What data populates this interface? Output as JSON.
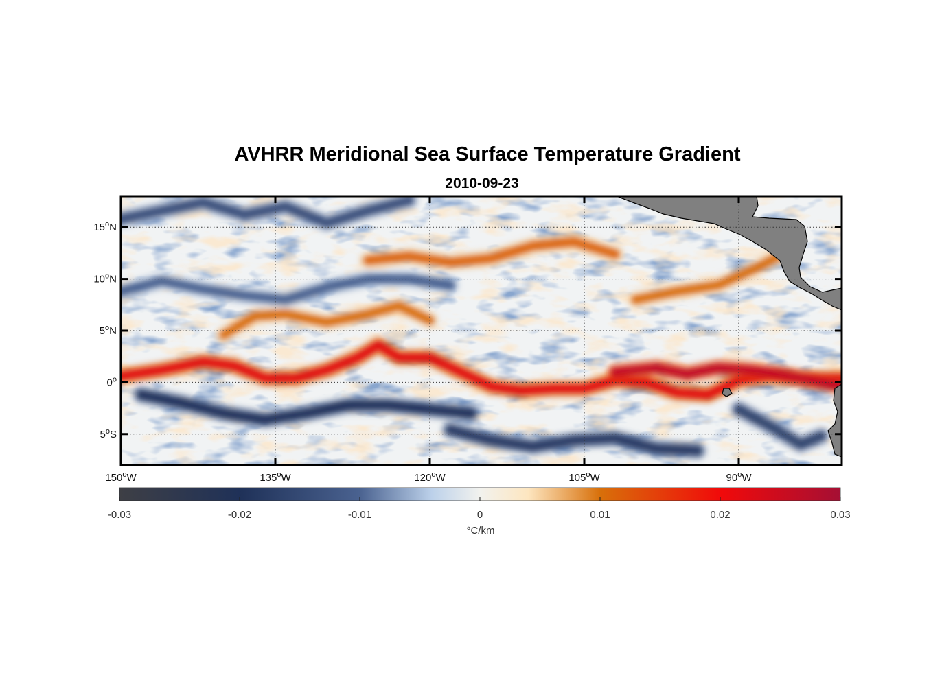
{
  "title": "AVHRR Meridional Sea Surface Temperature Gradient",
  "subtitle": "2010-09-23",
  "map": {
    "lon_range": [
      -150,
      -80
    ],
    "lat_range": [
      -8,
      18
    ],
    "grid": true,
    "lon_ticks": [
      {
        "value": -150,
        "label": "150",
        "suffix": "W"
      },
      {
        "value": -135,
        "label": "135",
        "suffix": "W"
      },
      {
        "value": -120,
        "label": "120",
        "suffix": "W"
      },
      {
        "value": -105,
        "label": "105",
        "suffix": "W"
      },
      {
        "value": -90,
        "label": "90",
        "suffix": "W"
      }
    ],
    "lat_ticks": [
      {
        "value": 15,
        "label": "15",
        "suffix": "N"
      },
      {
        "value": 10,
        "label": "10",
        "suffix": "N"
      },
      {
        "value": 5,
        "label": "5",
        "suffix": "N"
      },
      {
        "value": 0,
        "label": "0",
        "suffix": ""
      },
      {
        "value": -5,
        "label": "5",
        "suffix": "S"
      }
    ],
    "degree_symbol": "o",
    "land_color": "#808080",
    "features": [
      {
        "name": "equatorial-warm-front",
        "sign": 1,
        "strength": 0.022,
        "path": [
          [
            -150,
            0.6
          ],
          [
            -146,
            1.2
          ],
          [
            -142,
            2.0
          ],
          [
            -139,
            1.6
          ],
          [
            -136,
            0.4
          ],
          [
            -133,
            0.4
          ],
          [
            -130,
            1.2
          ],
          [
            -127,
            2.4
          ],
          [
            -125,
            3.6
          ],
          [
            -123,
            2.4
          ],
          [
            -120,
            2.4
          ],
          [
            -117,
            1.0
          ],
          [
            -114,
            -0.4
          ],
          [
            -111,
            -0.8
          ],
          [
            -108,
            -0.6
          ],
          [
            -105,
            -0.6
          ],
          [
            -102,
            0.2
          ],
          [
            -99,
            0.0
          ],
          [
            -96,
            -1.0
          ],
          [
            -93,
            -1.2
          ],
          [
            -90,
            0.2
          ],
          [
            -87,
            0.6
          ],
          [
            -84,
            0.4
          ],
          [
            -80,
            0.4
          ]
        ]
      },
      {
        "name": "eastern-warm-band",
        "sign": 1,
        "strength": 0.026,
        "path": [
          [
            -102,
            1.0
          ],
          [
            -98,
            1.4
          ],
          [
            -95,
            0.8
          ],
          [
            -92,
            1.4
          ],
          [
            -89,
            1.2
          ],
          [
            -86,
            0.8
          ],
          [
            -83,
            0.2
          ],
          [
            -80,
            -0.4
          ]
        ]
      },
      {
        "name": "northern-warm-band",
        "sign": 1,
        "strength": 0.011,
        "path": [
          [
            -126,
            11.8
          ],
          [
            -122,
            12.2
          ],
          [
            -118,
            11.6
          ],
          [
            -114,
            12.0
          ],
          [
            -110,
            13.2
          ],
          [
            -106,
            13.6
          ],
          [
            -102,
            12.4
          ]
        ]
      },
      {
        "name": "itcz-warm-band",
        "sign": 1,
        "strength": 0.01,
        "path": [
          [
            -140,
            4.6
          ],
          [
            -137,
            6.4
          ],
          [
            -134,
            6.6
          ],
          [
            -130,
            5.8
          ],
          [
            -126,
            6.6
          ],
          [
            -123,
            7.4
          ],
          [
            -120,
            6.0
          ]
        ]
      },
      {
        "name": "coastal-warm-band",
        "sign": 1,
        "strength": 0.01,
        "path": [
          [
            -100,
            8.0
          ],
          [
            -96,
            8.8
          ],
          [
            -92,
            9.4
          ],
          [
            -88,
            11.2
          ],
          [
            -85,
            12.8
          ]
        ]
      },
      {
        "name": "southern-cold-band",
        "sign": -1,
        "strength": 0.02,
        "path": [
          [
            -148,
            -1.2
          ],
          [
            -144,
            -2.0
          ],
          [
            -140,
            -3.0
          ],
          [
            -136,
            -3.6
          ],
          [
            -132,
            -3.0
          ],
          [
            -128,
            -2.2
          ],
          [
            -124,
            -2.2
          ],
          [
            -120,
            -2.6
          ],
          [
            -116,
            -3.0
          ]
        ]
      },
      {
        "name": "far-south-cold-band",
        "sign": -1,
        "strength": 0.018,
        "path": [
          [
            -118,
            -4.6
          ],
          [
            -114,
            -5.6
          ],
          [
            -110,
            -6.2
          ],
          [
            -106,
            -5.6
          ],
          [
            -102,
            -5.4
          ],
          [
            -98,
            -6.4
          ],
          [
            -94,
            -6.6
          ]
        ]
      },
      {
        "name": "northwest-cold-band",
        "sign": -1,
        "strength": 0.014,
        "path": [
          [
            -150,
            15.8
          ],
          [
            -146,
            16.6
          ],
          [
            -142,
            17.4
          ],
          [
            -138,
            16.2
          ],
          [
            -134,
            17.0
          ],
          [
            -130,
            15.4
          ],
          [
            -126,
            16.6
          ],
          [
            -122,
            17.6
          ]
        ]
      },
      {
        "name": "mid-cold-band",
        "sign": -1,
        "strength": 0.01,
        "path": [
          [
            -150,
            8.8
          ],
          [
            -146,
            9.8
          ],
          [
            -142,
            9.0
          ],
          [
            -138,
            8.4
          ],
          [
            -134,
            8.0
          ],
          [
            -130,
            9.2
          ],
          [
            -126,
            10.0
          ],
          [
            -122,
            10.0
          ],
          [
            -118,
            9.4
          ]
        ]
      },
      {
        "name": "east-cold-band",
        "sign": -1,
        "strength": 0.016,
        "path": [
          [
            -90,
            -2.6
          ],
          [
            -87,
            -4.2
          ],
          [
            -84,
            -6.0
          ],
          [
            -82,
            -5.2
          ]
        ]
      }
    ]
  },
  "colorbar": {
    "range": [
      -0.03,
      0.03
    ],
    "ticks": [
      "-0.03",
      "-0.02",
      "-0.01",
      "0",
      "0.01",
      "0.02",
      "0.03"
    ],
    "tick_values": [
      -0.03,
      -0.02,
      -0.01,
      0,
      0.01,
      0.02,
      0.03
    ],
    "label": "°C/km",
    "stops": [
      {
        "value": -0.03,
        "color": "#3e3f45"
      },
      {
        "value": -0.02,
        "color": "#1f3158"
      },
      {
        "value": -0.01,
        "color": "#4a6290"
      },
      {
        "value": -0.004,
        "color": "#bcd1ea"
      },
      {
        "value": 0.0,
        "color": "#f2f2ee"
      },
      {
        "value": 0.004,
        "color": "#fde6c0"
      },
      {
        "value": 0.01,
        "color": "#d8700a"
      },
      {
        "value": 0.02,
        "color": "#f10a0a"
      },
      {
        "value": 0.03,
        "color": "#a50f34"
      }
    ]
  }
}
